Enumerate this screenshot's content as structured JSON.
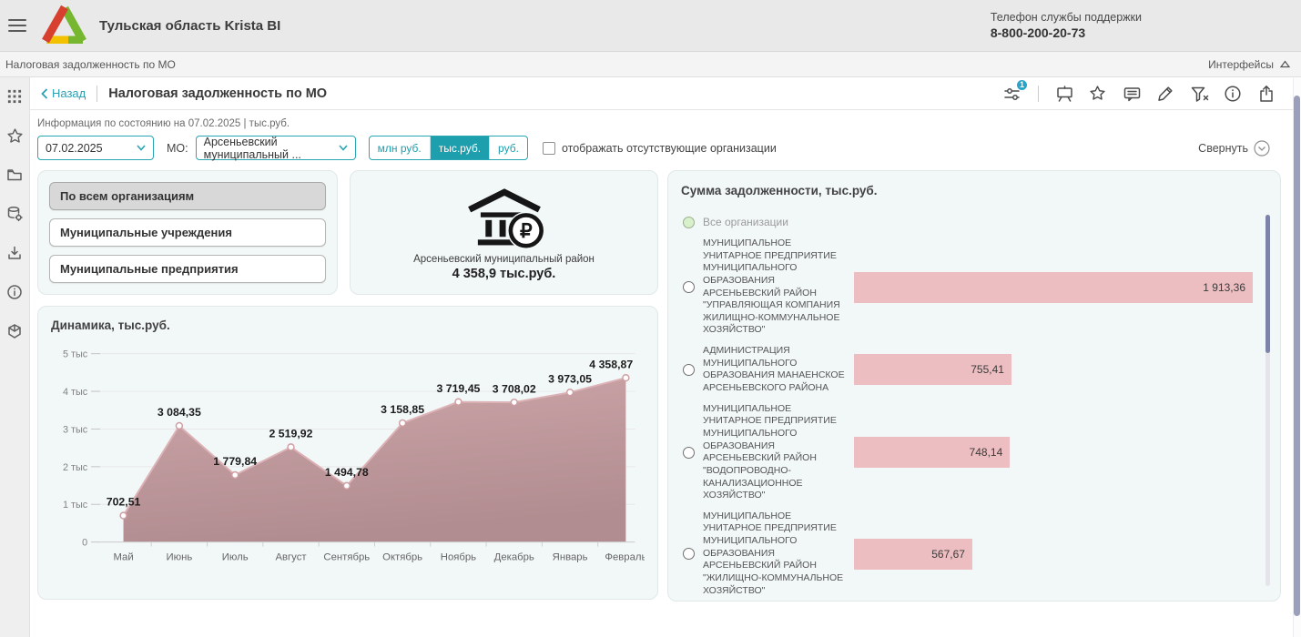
{
  "header": {
    "title": "Тульская область Krista BI",
    "support_label": "Телефон службы поддержки",
    "support_phone": "8-800-200-20-73"
  },
  "breadcrumb": {
    "left": "Налоговая задолженность по МО",
    "right_label": "Интерфейсы"
  },
  "toolbar": {
    "back_label": "Назад",
    "title": "Налоговая задолженность по МО",
    "badge": "1",
    "icons": [
      "chart-filter-settings-icon",
      "presentation-icon",
      "star-icon",
      "comment-icon",
      "pencil-icon",
      "filter-clear-icon",
      "info-icon",
      "share-icon"
    ]
  },
  "sidebar": {
    "icons": [
      "apps-grid-icon",
      "star-icon",
      "folder-icon",
      "database-settings-icon",
      "download-icon",
      "info-circle-icon",
      "cube-icon"
    ]
  },
  "filters": {
    "info_line": "Информация по состоянию на 07.02.2025 | тыс.руб.",
    "date_value": "07.02.2025",
    "mo_label": "МО:",
    "mo_value": "Арсеньевский муниципальный ...",
    "units": [
      "млн руб.",
      "тыс.руб.",
      "руб."
    ],
    "unit_selected": "тыс.руб.",
    "checkbox_label": "отображать отсутствующие организации",
    "checkbox_checked": false,
    "collapse_label": "Свернуть"
  },
  "org_buttons": {
    "items": [
      {
        "label": "По всем организациям",
        "selected": true
      },
      {
        "label": "Муниципальные учреждения",
        "selected": false
      },
      {
        "label": "Муниципальные предприятия",
        "selected": false
      }
    ]
  },
  "summary_card": {
    "region": "Арсеньевский муниципальный район",
    "value": "4 358,9 тыс.руб."
  },
  "debt_panel": {
    "all_label": "Все организации"
  },
  "colors": {
    "teal_accent": "#1e9fae",
    "bar_pink": "#edbec1",
    "area_mauve": "#b98f93",
    "badge_blue": "#2aa3c8",
    "radio_green": "#d8f0cc",
    "scrollbar_slate": "#7d84a8"
  },
  "chart_data": [
    {
      "type": "area",
      "title": "Динамика, тыс.руб.",
      "categories": [
        "Май",
        "Июнь",
        "Июль",
        "Август",
        "Сентябрь",
        "Октябрь",
        "Ноябрь",
        "Декабрь",
        "Январь",
        "Февраль"
      ],
      "values": [
        702.51,
        3084.35,
        1779.84,
        2519.92,
        1494.78,
        3158.85,
        3719.45,
        3708.02,
        3973.05,
        4358.87
      ],
      "value_labels": [
        "702,51",
        "3 084,35",
        "1 779,84",
        "2 519,92",
        "1 494,78",
        "3 158,85",
        "3 719,45",
        "3 708,02",
        "3 973,05",
        "4 358,87"
      ],
      "xlabel": "",
      "ylabel": "",
      "ylim": [
        0,
        5000
      ],
      "y_tick_labels": [
        "0",
        "1 тыс",
        "2 тыс",
        "3 тыс",
        "4 тыс",
        "5 тыс"
      ],
      "grid": true,
      "legend": false
    },
    {
      "type": "bar",
      "orientation": "horizontal",
      "title": "Сумма задолженности, тыс.руб.",
      "categories": [
        "МУНИЦИПАЛЬНОЕ УНИТАРНОЕ ПРЕДПРИЯТИЕ МУНИЦИПАЛЬНОГО ОБРАЗОВАНИЯ АРСЕНЬЕВСКИЙ РАЙОН \"УПРАВЛЯЮЩАЯ КОМПАНИЯ ЖИЛИЩНО-КОММУНАЛЬНОЕ ХОЗЯЙСТВО\"",
        "АДМИНИСТРАЦИЯ МУНИЦИПАЛЬНОГО ОБРАЗОВАНИЯ МАНАЕНСКОЕ АРСЕНЬЕВСКОГО РАЙОНА",
        "МУНИЦИПАЛЬНОЕ УНИТАРНОЕ ПРЕДПРИЯТИЕ МУНИЦИПАЛЬНОГО ОБРАЗОВАНИЯ АРСЕНЬЕВСКИЙ РАЙОН \"ВОДОПРОВОДНО-КАНАЛИЗАЦИОННОЕ ХОЗЯЙСТВО\"",
        "МУНИЦИПАЛЬНОЕ УНИТАРНОЕ ПРЕДПРИЯТИЕ МУНИЦИПАЛЬНОГО ОБРАЗОВАНИЯ АРСЕНЬЕВСКИЙ РАЙОН \"ЖИЛИЩНО-КОММУНАЛЬНОЕ ХОЗЯЙСТВО\""
      ],
      "values": [
        1913.36,
        755.41,
        748.14,
        567.67
      ],
      "value_labels": [
        "1 913,36",
        "755,41",
        "748,14",
        "567,67"
      ],
      "xlim": [
        0,
        1913.36
      ]
    }
  ]
}
